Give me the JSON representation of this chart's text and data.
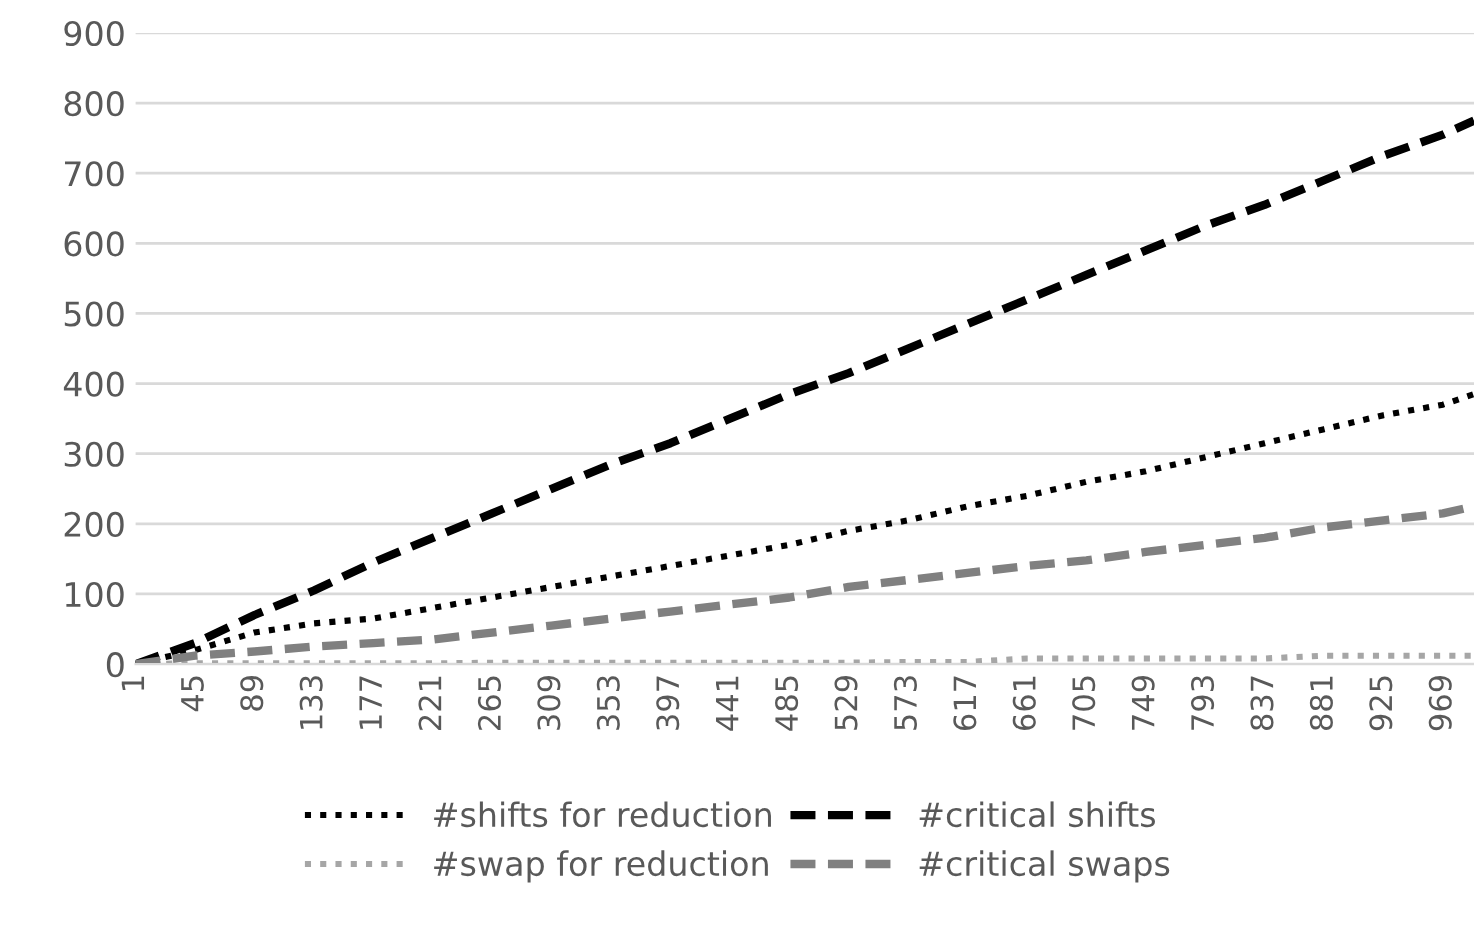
{
  "chart_data": {
    "type": "line",
    "x": [
      1,
      45,
      89,
      133,
      177,
      221,
      265,
      309,
      353,
      397,
      441,
      485,
      529,
      573,
      617,
      661,
      705,
      749,
      793,
      837,
      881,
      925,
      969,
      992
    ],
    "series": [
      {
        "name": "#shifts for reduction",
        "color": "#000000",
        "line_style": "dotted",
        "values": [
          0,
          20,
          45,
          58,
          65,
          80,
          95,
          110,
          125,
          140,
          155,
          170,
          190,
          205,
          225,
          240,
          260,
          275,
          295,
          315,
          335,
          355,
          370,
          385
        ]
      },
      {
        "name": "#swap for reduction",
        "color": "#a6a6a6",
        "line_style": "dotted",
        "values": [
          0,
          1,
          1,
          1,
          1,
          1,
          2,
          2,
          2,
          2,
          2,
          2,
          2,
          3,
          3,
          8,
          8,
          8,
          8,
          8,
          12,
          12,
          12,
          12
        ]
      },
      {
        "name": "#critical shifts",
        "color": "#000000",
        "line_style": "dashed",
        "values": [
          0,
          30,
          70,
          105,
          145,
          180,
          215,
          250,
          285,
          315,
          350,
          385,
          415,
          450,
          485,
          520,
          555,
          590,
          625,
          655,
          690,
          725,
          755,
          775
        ]
      },
      {
        "name": "#critical swaps",
        "color": "#808080",
        "line_style": "dashed",
        "values": [
          0,
          12,
          18,
          25,
          30,
          35,
          45,
          55,
          65,
          75,
          85,
          95,
          110,
          120,
          130,
          140,
          148,
          160,
          170,
          180,
          195,
          205,
          215,
          225
        ]
      }
    ],
    "xlim": [
      1,
      992
    ],
    "xticks": [
      1,
      45,
      89,
      133,
      177,
      221,
      265,
      309,
      353,
      397,
      441,
      485,
      529,
      573,
      617,
      661,
      705,
      749,
      793,
      837,
      881,
      925,
      969
    ],
    "ylim": [
      0,
      900
    ],
    "yticks": [
      0,
      100,
      200,
      300,
      400,
      500,
      600,
      700,
      800,
      900
    ],
    "grid": "y",
    "legend": "bottom",
    "marker": "none"
  }
}
